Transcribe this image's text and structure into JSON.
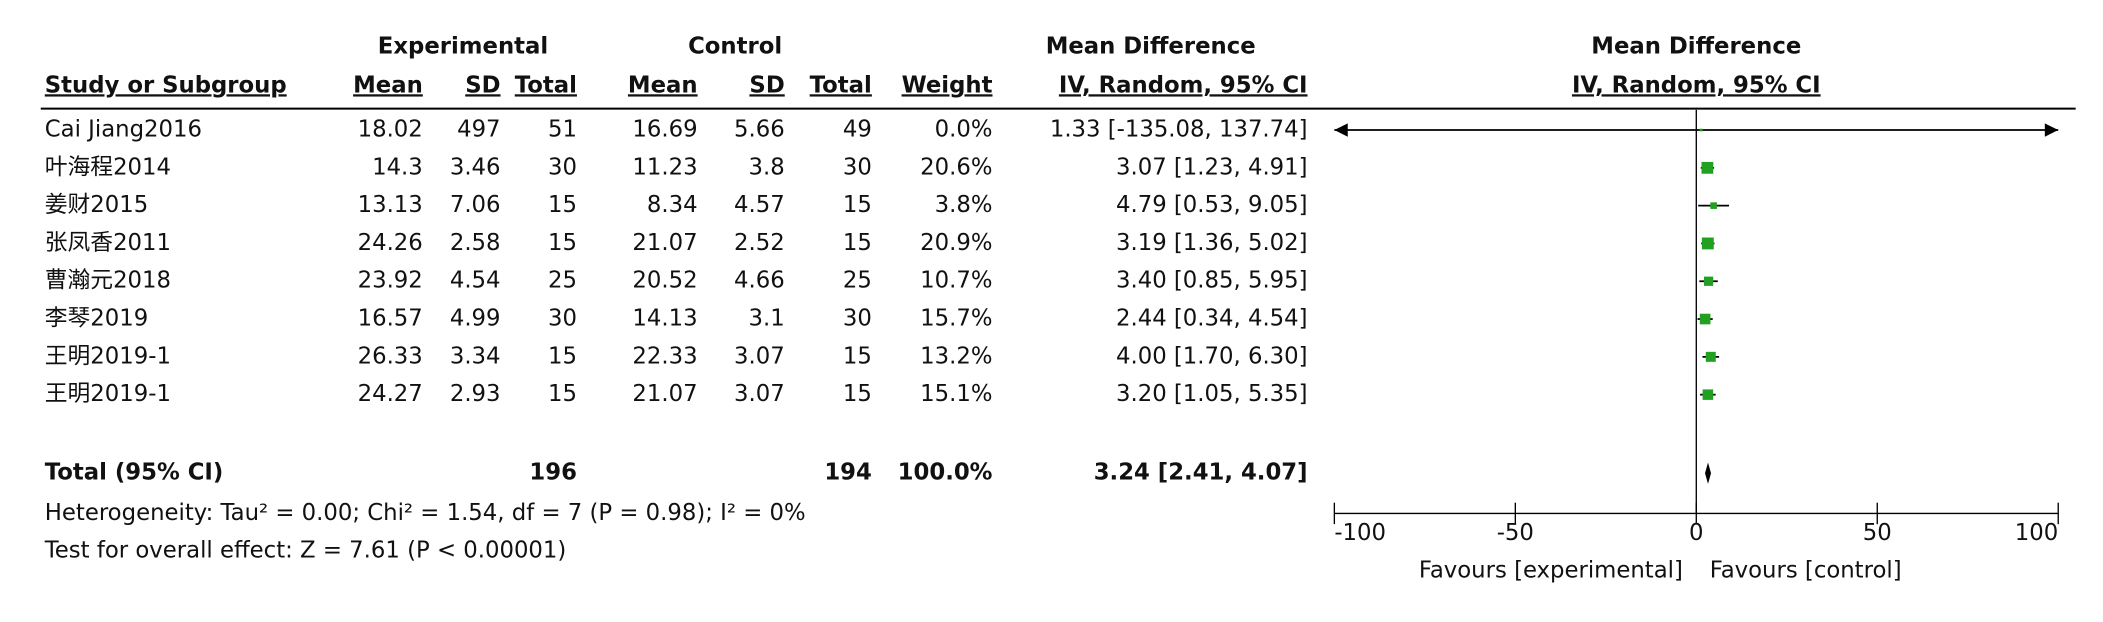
{
  "chart_data": {
    "type": "forest",
    "groups": [
      "Experimental",
      "Control",
      "Mean Difference"
    ],
    "columns": [
      "Study or Subgroup",
      "Mean",
      "SD",
      "Total",
      "Mean",
      "SD",
      "Total",
      "Weight",
      "IV, Random, 95% CI"
    ],
    "plot_title": [
      "Mean Difference",
      "IV, Random, 95% CI"
    ],
    "rows": [
      [
        "Cai Jiang2016",
        "18.02",
        "497",
        "51",
        "16.69",
        "5.66",
        "49"
      ],
      [
        "叶海程2014",
        "14.3",
        "3.46",
        "30",
        "11.23",
        "3.8",
        "30"
      ],
      [
        "姜财2015",
        "13.13",
        "7.06",
        "15",
        "8.34",
        "4.57",
        "15"
      ],
      [
        "张凤香2011",
        "24.26",
        "2.58",
        "15",
        "21.07",
        "2.52",
        "15"
      ],
      [
        "曹瀚元2018",
        "23.92",
        "4.54",
        "25",
        "20.52",
        "4.66",
        "25"
      ],
      [
        "李琴2019",
        "16.57",
        "4.99",
        "30",
        "14.13",
        "3.1",
        "30"
      ],
      [
        "王明2019-1",
        "26.33",
        "3.34",
        "15",
        "22.33",
        "3.07",
        "15"
      ],
      [
        "王明2019-1",
        "24.27",
        "2.93",
        "15",
        "21.07",
        "3.07",
        "15"
      ]
    ],
    "weights": [
      0,
      20.6,
      3.8,
      20.9,
      10.7,
      15.7,
      13.2,
      15.1
    ],
    "weight_labels": [
      "0.0%",
      "20.6%",
      "3.8%",
      "20.9%",
      "10.7%",
      "15.7%",
      "13.2%",
      "15.1%"
    ],
    "values": [
      1.33,
      3.07,
      4.79,
      3.19,
      3.4,
      2.44,
      4.0,
      3.2
    ],
    "lower": [
      -135.08,
      1.23,
      0.53,
      1.36,
      0.85,
      0.34,
      1.7,
      1.05
    ],
    "upper": [
      137.74,
      4.91,
      9.05,
      5.02,
      5.95,
      4.54,
      6.3,
      5.35
    ],
    "value_labels": [
      "1.33 [-135.08, 137.74]",
      "3.07 [1.23, 4.91]",
      "4.79 [0.53, 9.05]",
      "3.19 [1.36, 5.02]",
      "3.40 [0.85, 5.95]",
      "2.44 [0.34, 4.54]",
      "4.00 [1.70, 6.30]",
      "3.20 [1.05, 5.35]"
    ],
    "total": {
      "label": "Total (95% CI)",
      "exp_total": "196",
      "ctrl_total": "194",
      "weight": "100.0%",
      "value": 3.24,
      "lower": 2.41,
      "upper": 4.07,
      "value_label": "3.24 [2.41, 4.07]"
    },
    "notes": [
      "Heterogeneity: Tau² = 0.00; Chi² = 1.54, df = 7 (P = 0.98); I² = 0%",
      "Test for overall effect: Z = 7.61 (P < 0.00001)"
    ],
    "xlim": [
      -100,
      100
    ],
    "xticks": [
      -100,
      -50,
      0,
      50,
      100
    ],
    "xlabels": [
      "Favours [experimental]",
      "Favours [control]"
    ],
    "color": "#22a022"
  }
}
